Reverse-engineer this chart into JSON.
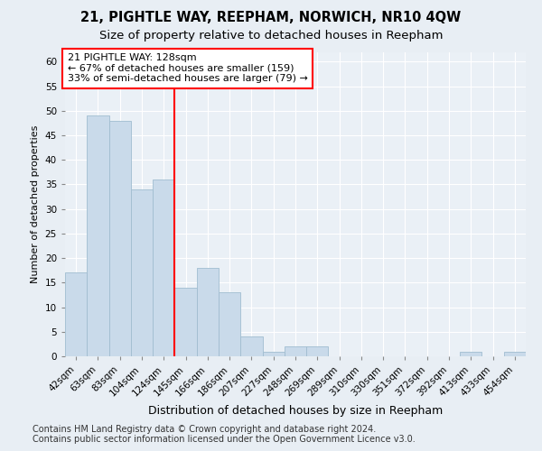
{
  "title": "21, PIGHTLE WAY, REEPHAM, NORWICH, NR10 4QW",
  "subtitle": "Size of property relative to detached houses in Reepham",
  "xlabel": "Distribution of detached houses by size in Reepham",
  "ylabel": "Number of detached properties",
  "categories": [
    "42sqm",
    "63sqm",
    "83sqm",
    "104sqm",
    "124sqm",
    "145sqm",
    "166sqm",
    "186sqm",
    "207sqm",
    "227sqm",
    "248sqm",
    "269sqm",
    "289sqm",
    "310sqm",
    "330sqm",
    "351sqm",
    "372sqm",
    "392sqm",
    "413sqm",
    "433sqm",
    "454sqm"
  ],
  "values": [
    17,
    49,
    48,
    34,
    36,
    14,
    18,
    13,
    4,
    1,
    2,
    2,
    0,
    0,
    0,
    0,
    0,
    0,
    1,
    0,
    1
  ],
  "bar_color": "#c9daea",
  "bar_edge_color": "#a0bdd0",
  "annotation_box_text": "21 PIGHTLE WAY: 128sqm\n← 67% of detached houses are smaller (159)\n33% of semi-detached houses are larger (79) →",
  "annotation_box_color": "white",
  "annotation_box_edge_color": "red",
  "vline_color": "red",
  "vline_x_index": 4,
  "ylim": [
    0,
    62
  ],
  "yticks": [
    0,
    5,
    10,
    15,
    20,
    25,
    30,
    35,
    40,
    45,
    50,
    55,
    60
  ],
  "footer": "Contains HM Land Registry data © Crown copyright and database right 2024.\nContains public sector information licensed under the Open Government Licence v3.0.",
  "bg_color": "#e8eef4",
  "plot_bg_color": "#eaf0f6",
  "grid_color": "white",
  "title_fontsize": 10.5,
  "subtitle_fontsize": 9.5,
  "footer_fontsize": 7,
  "ylabel_fontsize": 8,
  "xlabel_fontsize": 9,
  "tick_fontsize": 7.5,
  "annotation_fontsize": 8
}
